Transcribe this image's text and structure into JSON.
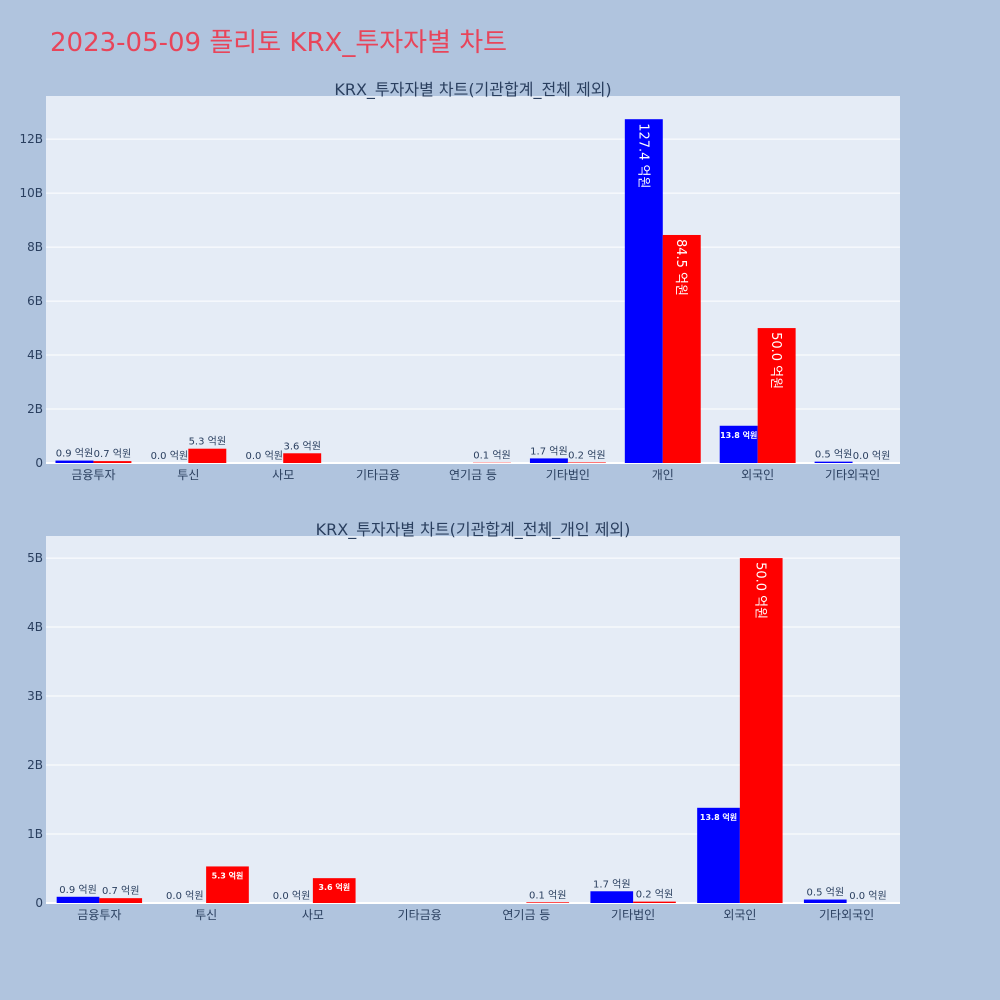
{
  "page": {
    "title": "2023-05-09 플리토 KRX_투자자별 차트"
  },
  "colors": {
    "background": "#b0c4de",
    "plot_bg": "#e5ecf6",
    "title": "#e8455a",
    "buy": "#0000ff",
    "sell": "#ff0000",
    "grid": "#ffffff"
  },
  "chart_data": [
    {
      "type": "bar",
      "title": "KRX_투자자별 차트(기관합계_전체 제외)",
      "categories": [
        "금융투자",
        "투신",
        "사모",
        "기타금융",
        "연기금 등",
        "기타법인",
        "개인",
        "외국인",
        "기타외국인"
      ],
      "series": [
        {
          "values": [
            90000000,
            0,
            0,
            0,
            0,
            170000000,
            12740000000,
            1380000000,
            50000000
          ],
          "labels": [
            "0.9 억원",
            "0.0 억원",
            "0.0 억원",
            "",
            "",
            "1.7 억원",
            "127.4 억원",
            "13.8 억원",
            "0.5 억원"
          ]
        },
        {
          "values": [
            70000000,
            530000000,
            360000000,
            0,
            10000000,
            20000000,
            8450000000,
            5000000000,
            0
          ],
          "labels": [
            "0.7 억원",
            "5.3 억원",
            "3.6 억원",
            "",
            "0.1 억원",
            "0.2 억원",
            "84.5 억원",
            "50.0 억원",
            "0.0 억원"
          ]
        }
      ],
      "y_ticks": [
        "0",
        "2B",
        "4B",
        "6B",
        "8B",
        "10B",
        "12B"
      ],
      "ylim": [
        0,
        13600000000
      ],
      "grid": true
    },
    {
      "type": "bar",
      "title": "KRX_투자자별 차트(기관합계_전체_개인 제외)",
      "categories": [
        "금융투자",
        "투신",
        "사모",
        "기타금융",
        "연기금 등",
        "기타법인",
        "외국인",
        "기타외국인"
      ],
      "series": [
        {
          "values": [
            90000000,
            0,
            0,
            0,
            0,
            170000000,
            1380000000,
            50000000
          ],
          "labels": [
            "0.9 억원",
            "0.0 억원",
            "0.0 억원",
            "",
            "",
            "1.7 억원",
            "13.8 억원",
            "0.5 억원"
          ]
        },
        {
          "values": [
            70000000,
            530000000,
            360000000,
            0,
            10000000,
            20000000,
            5000000000,
            0
          ],
          "labels": [
            "0.7 억원",
            "5.3 억원",
            "3.6 억원",
            "",
            "0.1 억원",
            "0.2 억원",
            "50.0 억원",
            "0.0 억원"
          ]
        }
      ],
      "y_ticks": [
        "0",
        "1B",
        "2B",
        "3B",
        "4B",
        "5B"
      ],
      "ylim": [
        0,
        5320000000
      ],
      "grid": true
    }
  ]
}
